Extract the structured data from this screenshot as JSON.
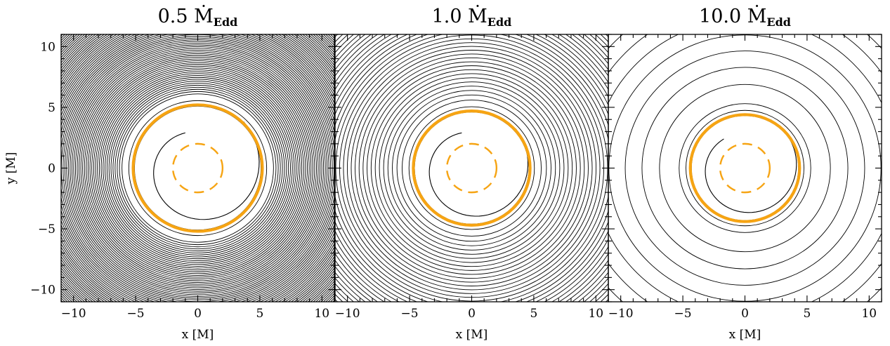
{
  "colors": {
    "photosphere": "#f6a413",
    "horizon": "#f6a413",
    "contours": "#000000"
  },
  "chart_data": [
    {
      "type": "contour",
      "title": "0.5",
      "title_unit": "Ṁ",
      "title_subscript": "Edd",
      "xlabel": "x [M]",
      "ylabel": "y [M]",
      "xlim": [
        -11,
        11
      ],
      "ylim": [
        -11,
        11
      ],
      "xticks": [
        -10,
        -5,
        0,
        5,
        10
      ],
      "yticks": [
        -10,
        -5,
        0,
        5,
        10
      ],
      "photosphere_radius": 5.2,
      "photosphere_center": [
        0,
        0
      ],
      "horizon_radius": 2.0,
      "horizon_center": [
        0,
        0
      ],
      "spiral_tip": [
        -1.0,
        2.9
      ],
      "contour_count": 70
    },
    {
      "type": "contour",
      "title": "1.0",
      "title_unit": "Ṁ",
      "title_subscript": "Edd",
      "xlabel": "x [M]",
      "ylabel": "",
      "xlim": [
        -11,
        11
      ],
      "ylim": [
        -11,
        11
      ],
      "xticks": [
        -10,
        -5,
        0,
        5,
        10
      ],
      "yticks": [
        -10,
        -5,
        0,
        5,
        10
      ],
      "photosphere_radius": 4.7,
      "photosphere_center": [
        0,
        0
      ],
      "horizon_radius": 2.0,
      "horizon_center": [
        0,
        0
      ],
      "spiral_tip": [
        -0.8,
        2.9
      ],
      "contour_count": 34
    },
    {
      "type": "contour",
      "title": "10.0",
      "title_unit": "Ṁ",
      "title_subscript": "Edd",
      "xlabel": "x [M]",
      "ylabel": "",
      "xlim": [
        -11,
        11
      ],
      "ylim": [
        -11,
        11
      ],
      "xticks": [
        -10,
        -5,
        0,
        5,
        10
      ],
      "yticks": [
        -10,
        -5,
        0,
        5,
        10
      ],
      "photosphere_radius": 4.4,
      "photosphere_center": [
        0,
        0
      ],
      "horizon_radius": 2.0,
      "horizon_center": [
        0,
        0
      ],
      "spiral_tip": [
        -1.7,
        2.4
      ],
      "contour_count": 9
    }
  ]
}
